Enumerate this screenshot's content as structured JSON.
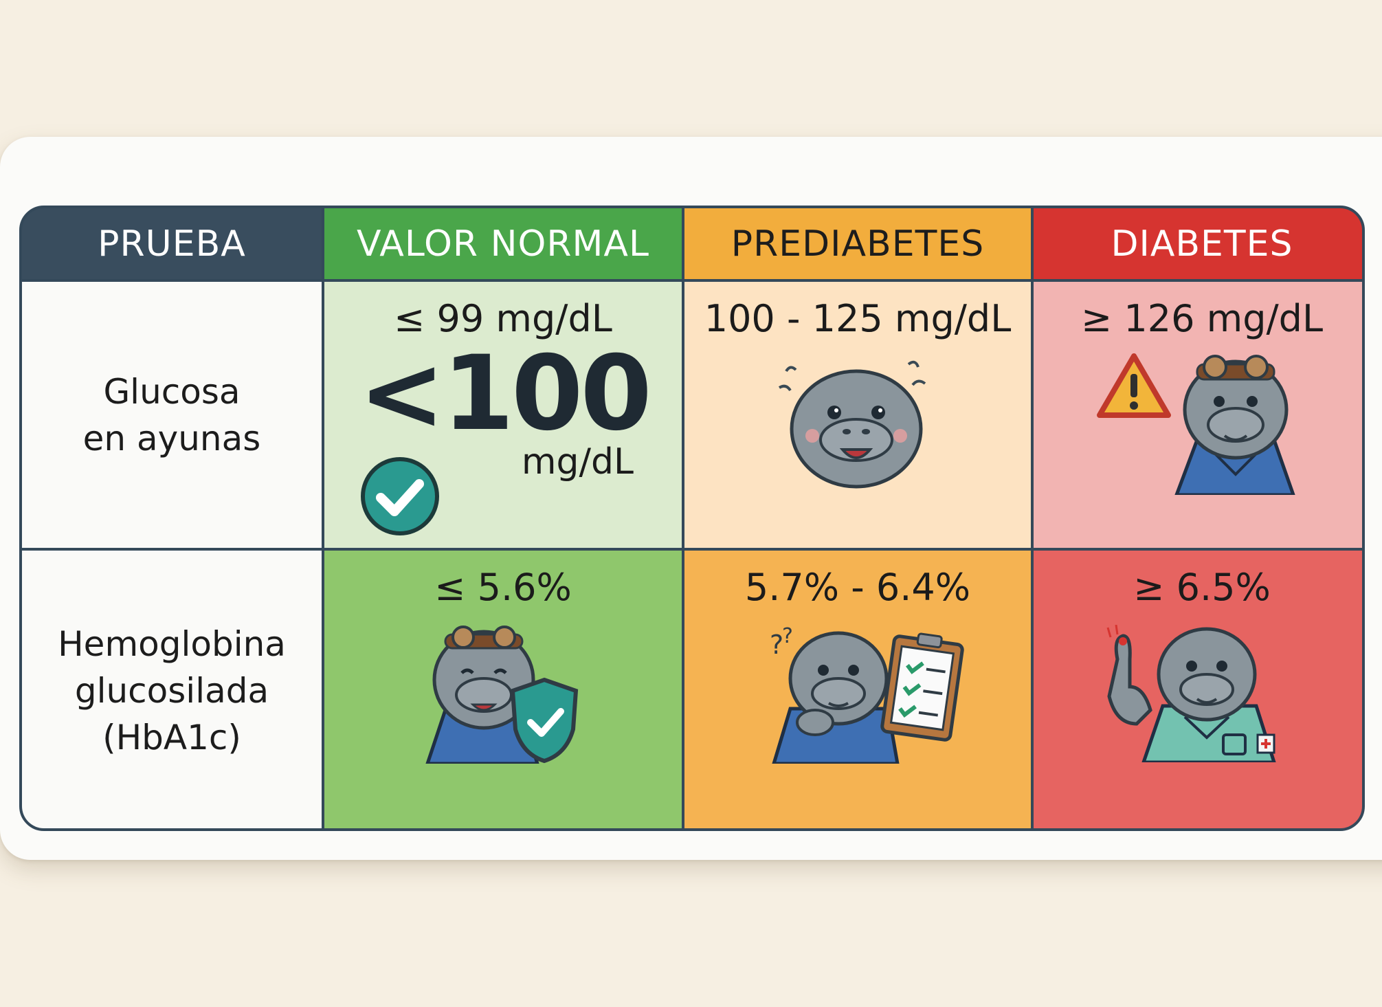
{
  "header": {
    "test": "PRUEBA",
    "normal": "VALOR NORMAL",
    "prediabetes": "PREDIABETES",
    "diabetes": "DIABETES"
  },
  "rows": [
    {
      "label_lines": [
        "Glucosa",
        "en ayunas"
      ],
      "normal": "≤ 99 mg/dL",
      "normal_highlight": "<100",
      "normal_highlight_unit": "mg/dL",
      "prediabetes": "100 - 125 mg/dL",
      "diabetes": "≥ 126 mg/dL"
    },
    {
      "label_lines": [
        "Hemoglobina",
        "glucosilada",
        "(HbA1c)"
      ],
      "normal": "≤ 5.6%",
      "prediabetes": "5.7% - 6.4%",
      "diabetes": "≥ 6.5%"
    }
  ],
  "icons": {
    "normal_fasting": "check-circle-icon",
    "prediabetes_fasting": "worried-manatee-icon",
    "diabetes_fasting": "warning-manatee-icon",
    "normal_hba1c": "shield-manatee-icon",
    "prediabetes_hba1c": "clipboard-manatee-icon",
    "diabetes_hba1c": "finger-prick-manatee-icon"
  },
  "colors": {
    "header_test": "#394d5e",
    "header_normal": "#4aa64a",
    "header_prediabetes": "#f2ad3d",
    "header_diabetes": "#d63430"
  }
}
